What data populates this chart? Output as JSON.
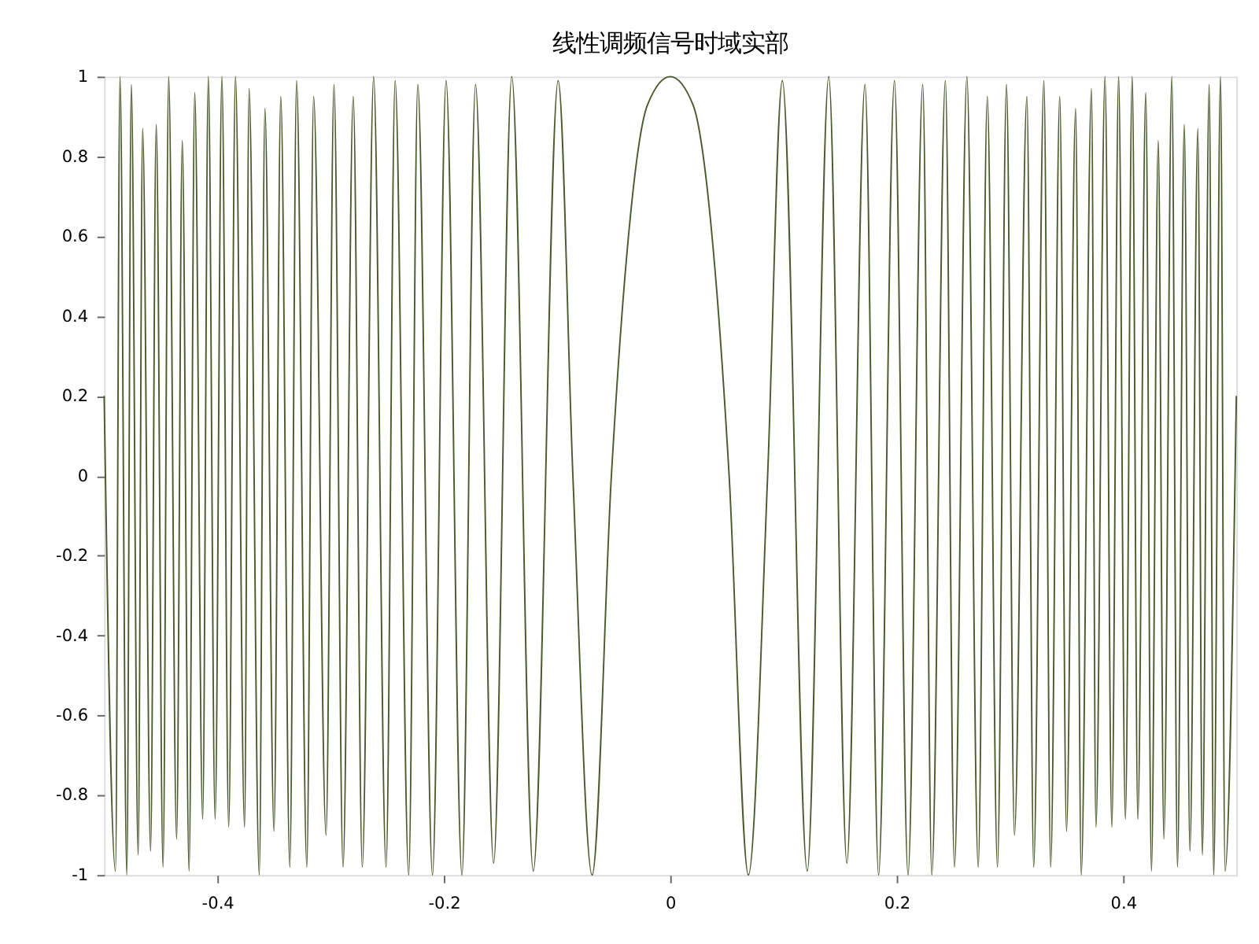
{
  "chart_data": {
    "type": "line",
    "title": "线性调频信号时域实部",
    "x": [
      -0.5,
      -0.49,
      -0.486,
      -0.48,
      -0.476,
      -0.47,
      -0.466,
      -0.459,
      -0.454,
      -0.448,
      -0.443,
      -0.436,
      -0.431,
      -0.425,
      -0.42,
      -0.413,
      -0.408,
      -0.402,
      -0.396,
      -0.39,
      -0.384,
      -0.376,
      -0.372,
      -0.363,
      -0.358,
      -0.35,
      -0.344,
      -0.336,
      -0.33,
      -0.321,
      -0.315,
      -0.304,
      -0.297,
      -0.289,
      -0.28,
      -0.272,
      -0.262,
      -0.251,
      -0.243,
      -0.231,
      -0.223,
      -0.21,
      -0.198,
      -0.184,
      -0.172,
      -0.156,
      -0.14,
      -0.121,
      -0.099,
      -0.086,
      -0.069,
      -0.052,
      -0.04,
      -0.02,
      0,
      0.02,
      0.04,
      0.052,
      0.069,
      0.086,
      0.099,
      0.121,
      0.14,
      0.156,
      0.172,
      0.184,
      0.198,
      0.21,
      0.223,
      0.231,
      0.243,
      0.251,
      0.262,
      0.272,
      0.28,
      0.289,
      0.297,
      0.304,
      0.315,
      0.321,
      0.33,
      0.336,
      0.344,
      0.35,
      0.358,
      0.363,
      0.372,
      0.376,
      0.384,
      0.39,
      0.396,
      0.402,
      0.408,
      0.413,
      0.42,
      0.425,
      0.431,
      0.436,
      0.443,
      0.448,
      0.454,
      0.459,
      0.466,
      0.47,
      0.476,
      0.48,
      0.486,
      0.49,
      0.5
    ],
    "series": [
      {
        "color": "#4b5a2c",
        "values": [
          0.2,
          -0.99,
          1,
          -1,
          0.98,
          -0.95,
          0.87,
          -0.94,
          0.88,
          -0.98,
          1,
          -0.91,
          0.84,
          -0.99,
          0.96,
          -0.86,
          1,
          -0.86,
          1,
          -0.88,
          1,
          -0.88,
          0.97,
          -1,
          0.92,
          -0.89,
          0.95,
          -0.98,
          0.99,
          -0.98,
          0.95,
          -0.9,
          0.98,
          -0.98,
          0.95,
          -0.98,
          1,
          -0.98,
          0.99,
          -1,
          0.98,
          -1,
          0.99,
          -1,
          0.98,
          -0.97,
          1,
          -0.99,
          0.99,
          0,
          -1,
          0,
          0.5,
          0.93,
          1,
          0.93,
          0.5,
          0,
          -1,
          0,
          0.99,
          -0.99,
          1,
          -0.97,
          0.98,
          -1,
          0.99,
          -1,
          0.98,
          -1,
          0.99,
          -0.98,
          1,
          -0.98,
          0.95,
          -0.98,
          0.98,
          -0.9,
          0.95,
          -0.98,
          0.99,
          -0.98,
          0.95,
          -0.89,
          0.92,
          -1,
          0.97,
          -0.88,
          1,
          -0.88,
          1,
          -0.86,
          1,
          -0.86,
          0.96,
          -0.99,
          0.84,
          -0.91,
          1,
          -0.98,
          0.88,
          -0.94,
          0.87,
          -0.95,
          0.98,
          -1,
          1,
          -0.99,
          0.2
        ]
      }
    ],
    "xlim": [
      -0.5,
      0.5
    ],
    "xticks": [
      -0.4,
      -0.2,
      0,
      0.2,
      0.4
    ],
    "ylim": [
      -1,
      1
    ],
    "yticks": [
      -1,
      -0.8,
      -0.6,
      -0.4,
      -0.2,
      0,
      0.2,
      0.4,
      0.6,
      0.8,
      1
    ],
    "grid": false,
    "marker": "none",
    "line_style": "solid"
  }
}
